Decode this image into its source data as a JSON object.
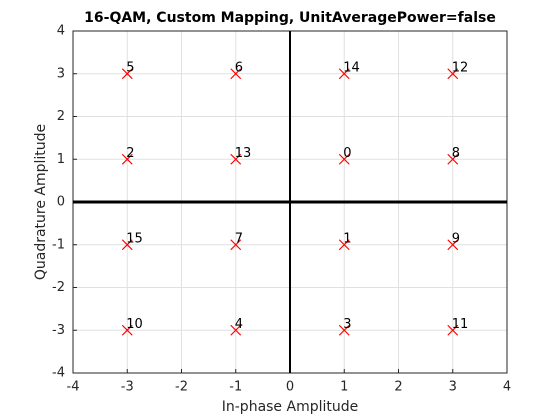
{
  "chart_data": {
    "type": "scatter",
    "title": "16-QAM, Custom Mapping, UnitAveragePower=false",
    "xlabel": "In-phase Amplitude",
    "ylabel": "Quadrature Amplitude",
    "x": [
      -3,
      -1,
      1,
      3,
      -3,
      -1,
      1,
      3,
      -3,
      -1,
      1,
      3,
      -3,
      -1,
      1,
      3
    ],
    "y": [
      3,
      3,
      3,
      3,
      1,
      1,
      1,
      1,
      -1,
      -1,
      -1,
      -1,
      -3,
      -3,
      -3,
      -3
    ],
    "labels": [
      "5",
      "6",
      "14",
      "12",
      "2",
      "13",
      "0",
      "8",
      "15",
      "7",
      "1",
      "9",
      "10",
      "4",
      "3",
      "11"
    ],
    "color": "#ff0000",
    "xlim": [
      -4,
      4
    ],
    "xticks": [
      -4,
      -3,
      -2,
      -1,
      0,
      1,
      2,
      3,
      4
    ],
    "ylim": [
      -4,
      4
    ],
    "yticks": [
      -4,
      -3,
      -2,
      -1,
      0,
      1,
      2,
      3,
      4
    ],
    "grid": true
  }
}
